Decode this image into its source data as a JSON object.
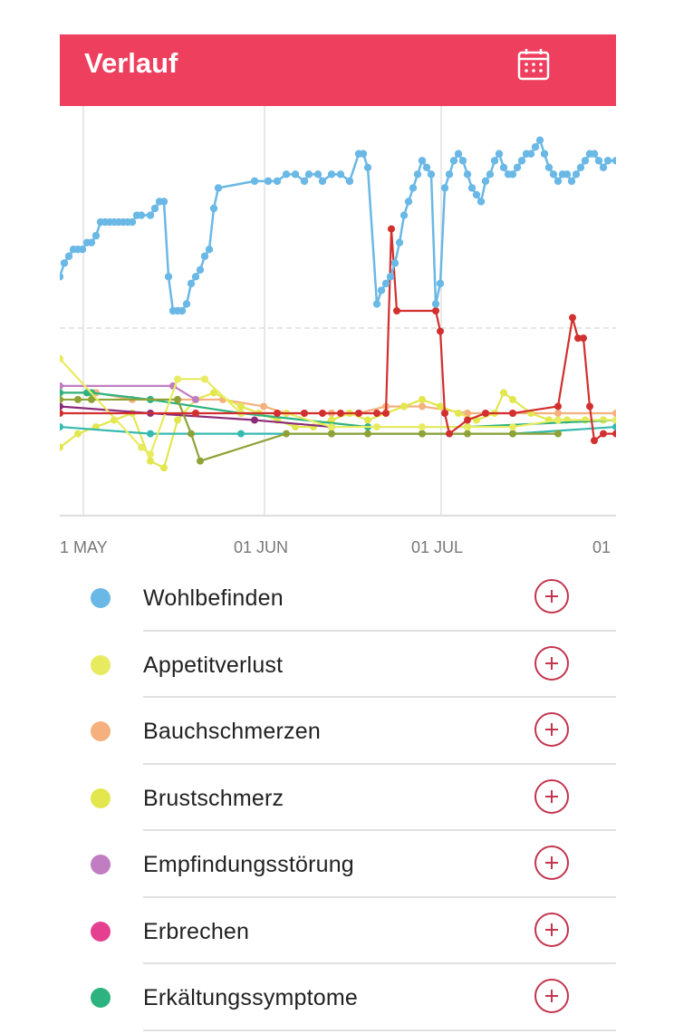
{
  "header": {
    "title": "Verlauf",
    "background_color": "#ee3f5e",
    "calendar_icon": "calendar-icon"
  },
  "chart_data": {
    "type": "line",
    "x_axis": {
      "tick_labels": [
        "1 MAY",
        "01 JUN",
        "01 JUL",
        "01"
      ]
    },
    "grid": true,
    "series": [
      {
        "name": "Wohlbefinden",
        "color": "#6ab8e5",
        "points": [
          [
            0,
            35
          ],
          [
            5,
            37
          ],
          [
            10,
            38
          ],
          [
            15,
            39
          ],
          [
            20,
            39
          ],
          [
            25,
            39
          ],
          [
            30,
            40
          ],
          [
            35,
            40
          ],
          [
            40,
            41
          ],
          [
            45,
            43
          ],
          [
            50,
            43
          ],
          [
            55,
            43
          ],
          [
            60,
            43
          ],
          [
            65,
            43
          ],
          [
            70,
            43
          ],
          [
            75,
            43
          ],
          [
            80,
            43
          ],
          [
            85,
            44
          ],
          [
            90,
            44
          ],
          [
            100,
            44
          ],
          [
            105,
            45
          ],
          [
            110,
            46
          ],
          [
            115,
            46
          ],
          [
            120,
            35
          ],
          [
            125,
            30
          ],
          [
            130,
            30
          ],
          [
            135,
            30
          ],
          [
            140,
            31
          ],
          [
            145,
            34
          ],
          [
            150,
            35
          ],
          [
            155,
            36
          ],
          [
            160,
            38
          ],
          [
            165,
            39
          ],
          [
            170,
            45
          ],
          [
            175,
            48
          ],
          [
            215,
            49
          ],
          [
            230,
            49
          ],
          [
            240,
            49
          ],
          [
            250,
            50
          ],
          [
            260,
            50
          ],
          [
            270,
            49
          ],
          [
            275,
            50
          ],
          [
            285,
            50
          ],
          [
            290,
            49
          ],
          [
            300,
            50
          ],
          [
            310,
            50
          ],
          [
            320,
            49
          ],
          [
            330,
            53
          ],
          [
            335,
            53
          ],
          [
            340,
            51
          ],
          [
            350,
            31
          ],
          [
            355,
            33
          ],
          [
            360,
            34
          ],
          [
            365,
            35
          ],
          [
            370,
            37
          ],
          [
            375,
            40
          ],
          [
            380,
            44
          ],
          [
            385,
            46
          ],
          [
            390,
            48
          ],
          [
            395,
            50
          ],
          [
            400,
            52
          ],
          [
            405,
            51
          ],
          [
            410,
            50
          ],
          [
            415,
            31
          ],
          [
            420,
            34
          ],
          [
            425,
            48
          ],
          [
            430,
            50
          ],
          [
            435,
            52
          ],
          [
            440,
            53
          ],
          [
            445,
            52
          ],
          [
            450,
            50
          ],
          [
            455,
            48
          ],
          [
            460,
            47
          ],
          [
            465,
            46
          ],
          [
            470,
            49
          ],
          [
            475,
            50
          ],
          [
            480,
            52
          ],
          [
            485,
            53
          ],
          [
            490,
            51
          ],
          [
            495,
            50
          ],
          [
            500,
            50
          ],
          [
            505,
            51
          ],
          [
            510,
            52
          ],
          [
            515,
            53
          ],
          [
            520,
            53
          ],
          [
            525,
            54
          ],
          [
            530,
            55
          ],
          [
            535,
            53
          ],
          [
            540,
            51
          ],
          [
            545,
            50
          ],
          [
            550,
            49
          ],
          [
            555,
            50
          ],
          [
            560,
            50
          ],
          [
            565,
            49
          ],
          [
            570,
            50
          ],
          [
            575,
            51
          ],
          [
            580,
            52
          ],
          [
            585,
            53
          ],
          [
            590,
            53
          ],
          [
            595,
            52
          ],
          [
            600,
            51
          ],
          [
            605,
            52
          ],
          [
            614,
            52
          ]
        ]
      },
      {
        "name": "Appetitverlust",
        "color": "#e8eb5f",
        "points": [
          [
            0,
            23
          ],
          [
            90,
            10
          ],
          [
            100,
            9
          ],
          [
            130,
            20
          ],
          [
            160,
            20
          ],
          [
            200,
            15
          ],
          [
            250,
            15
          ],
          [
            300,
            13
          ],
          [
            350,
            13
          ],
          [
            400,
            13
          ],
          [
            450,
            13
          ],
          [
            500,
            13
          ],
          [
            550,
            14
          ],
          [
            614,
            14
          ]
        ]
      },
      {
        "name": "Bauchschmerzen",
        "color": "#f5b07d",
        "points": [
          [
            0,
            18
          ],
          [
            40,
            18
          ],
          [
            80,
            17
          ],
          [
            130,
            17
          ],
          [
            180,
            17
          ],
          [
            225,
            16
          ],
          [
            250,
            15
          ],
          [
            270,
            15
          ],
          [
            300,
            15
          ],
          [
            330,
            15
          ],
          [
            360,
            16
          ],
          [
            380,
            16
          ],
          [
            400,
            16
          ],
          [
            450,
            15
          ],
          [
            500,
            15
          ],
          [
            550,
            15
          ],
          [
            614,
            15
          ]
        ]
      },
      {
        "name": "Brustschmerz",
        "color": "#e2e74e",
        "points": [
          [
            0,
            10
          ],
          [
            20,
            12
          ],
          [
            40,
            13
          ],
          [
            60,
            14
          ],
          [
            80,
            15
          ],
          [
            100,
            8
          ],
          [
            115,
            7
          ],
          [
            130,
            14
          ],
          [
            150,
            17
          ],
          [
            170,
            18
          ],
          [
            200,
            16
          ],
          [
            220,
            15
          ],
          [
            240,
            14
          ],
          [
            260,
            13
          ],
          [
            280,
            13
          ],
          [
            300,
            14
          ],
          [
            320,
            15
          ],
          [
            340,
            14
          ],
          [
            360,
            15
          ],
          [
            380,
            16
          ],
          [
            400,
            17
          ],
          [
            420,
            16
          ],
          [
            440,
            15
          ],
          [
            460,
            14
          ],
          [
            480,
            15
          ],
          [
            490,
            18
          ],
          [
            500,
            17
          ],
          [
            520,
            15
          ],
          [
            540,
            14
          ],
          [
            560,
            14
          ],
          [
            580,
            14
          ],
          [
            600,
            14
          ],
          [
            614,
            14
          ]
        ]
      },
      {
        "name": "Empfindungsstörung",
        "color": "#c17dc1",
        "points": [
          [
            0,
            19
          ],
          [
            125,
            19
          ],
          [
            150,
            17
          ]
        ]
      },
      {
        "name": "Erbrechen",
        "color": "#8b2c7a",
        "points": [
          [
            0,
            16
          ],
          [
            100,
            15
          ],
          [
            215,
            14
          ],
          [
            300,
            13
          ]
        ]
      },
      {
        "name": "Erkältungssymptome",
        "color": "#2db37f",
        "points": [
          [
            0,
            18
          ],
          [
            30,
            18
          ],
          [
            35,
            18
          ],
          [
            100,
            17
          ],
          [
            200,
            15
          ],
          [
            340,
            13
          ],
          [
            450,
            13
          ],
          [
            614,
            14
          ]
        ]
      },
      {
        "name": "",
        "color": "#d22f2f",
        "points": [
          [
            0,
            15
          ],
          [
            150,
            15
          ],
          [
            240,
            15
          ],
          [
            270,
            15
          ],
          [
            290,
            15
          ],
          [
            310,
            15
          ],
          [
            330,
            15
          ],
          [
            350,
            15
          ],
          [
            360,
            15
          ],
          [
            366,
            42
          ],
          [
            372,
            30
          ],
          [
            415,
            30
          ],
          [
            420,
            27
          ],
          [
            425,
            15
          ],
          [
            430,
            12
          ],
          [
            450,
            14
          ],
          [
            470,
            15
          ],
          [
            500,
            15
          ],
          [
            550,
            16
          ],
          [
            566,
            29
          ],
          [
            572,
            26
          ],
          [
            578,
            26
          ],
          [
            585,
            16
          ],
          [
            590,
            11
          ],
          [
            600,
            12
          ],
          [
            614,
            12
          ]
        ]
      },
      {
        "name": "",
        "color": "#8ea236",
        "points": [
          [
            0,
            17
          ],
          [
            20,
            17
          ],
          [
            35,
            17
          ],
          [
            130,
            17
          ],
          [
            145,
            12
          ],
          [
            155,
            8
          ],
          [
            250,
            12
          ],
          [
            300,
            12
          ],
          [
            340,
            12
          ],
          [
            400,
            12
          ],
          [
            450,
            12
          ],
          [
            500,
            12
          ],
          [
            550,
            12
          ]
        ]
      },
      {
        "name": "",
        "color": "#36b9b0",
        "points": [
          [
            0,
            13
          ],
          [
            100,
            12
          ],
          [
            200,
            12
          ],
          [
            300,
            12
          ],
          [
            400,
            12
          ],
          [
            500,
            12
          ],
          [
            614,
            13
          ]
        ]
      }
    ]
  },
  "legend": {
    "items": [
      {
        "label": "Wohlbefinden",
        "color": "#6ab8e5"
      },
      {
        "label": "Appetitverlust",
        "color": "#e8eb5f"
      },
      {
        "label": "Bauchschmerzen",
        "color": "#f5b07d"
      },
      {
        "label": "Brustschmerz",
        "color": "#e2e74e"
      },
      {
        "label": "Empfindungsstörung",
        "color": "#c17dc1"
      },
      {
        "label": "Erbrechen",
        "color": "#e53f8f"
      },
      {
        "label": "Erkältungssymptome",
        "color": "#2db37f"
      }
    ],
    "add_icon": "plus-circle-icon",
    "add_color": "#c2364f"
  }
}
